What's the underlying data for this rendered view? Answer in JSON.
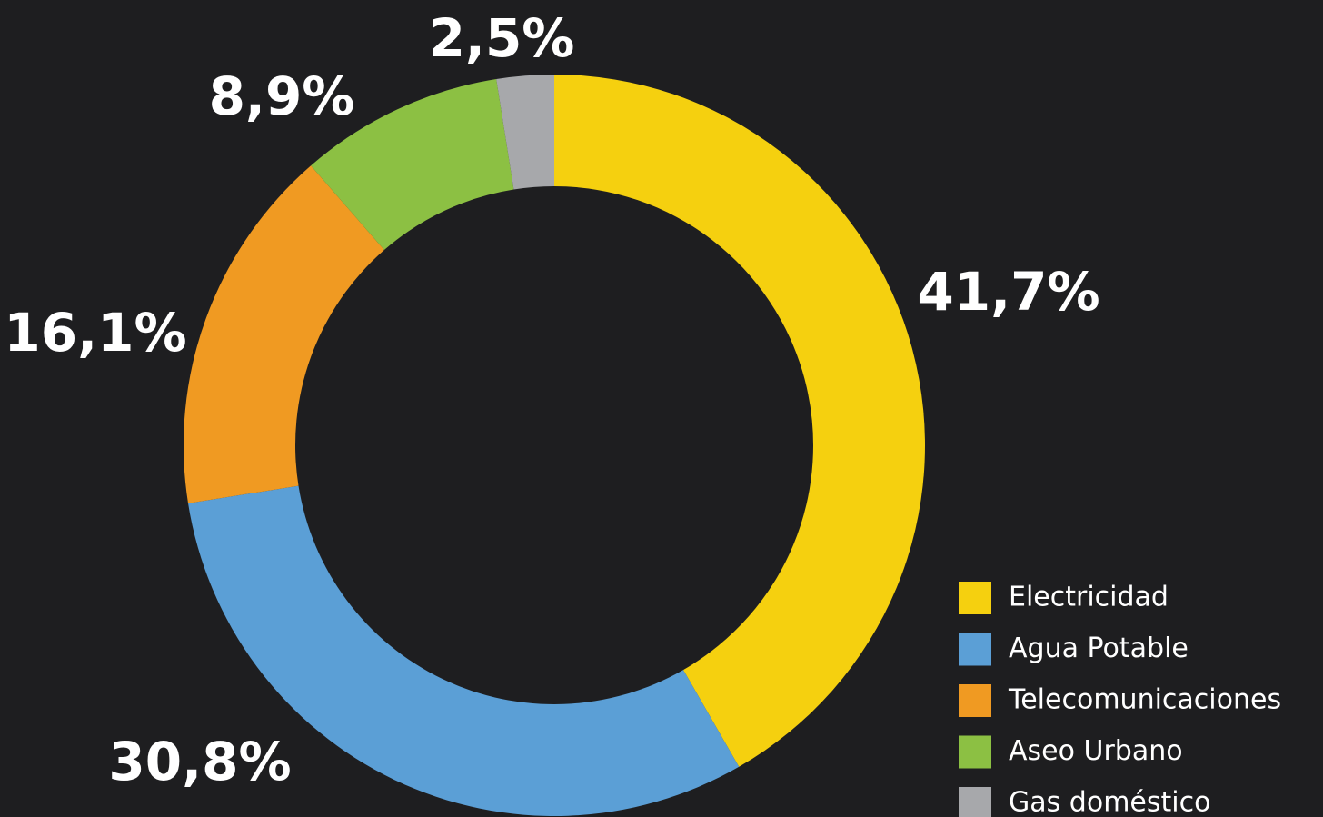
{
  "chart_data": {
    "type": "pie",
    "categories": [
      "Electricidad",
      "Agua Potable",
      "Telecomunicaciones",
      "Aseo Urbano",
      "Gas doméstico"
    ],
    "values": [
      41.7,
      30.8,
      16.1,
      8.9,
      2.5
    ],
    "value_labels": [
      "41,7%",
      "30,8%",
      "16,1%",
      "8,9%",
      "2,5%"
    ],
    "colors": [
      "#f5d00f",
      "#5b9fd6",
      "#f09a22",
      "#8cc043",
      "#a7a8ab"
    ],
    "legend": "bottom-right"
  }
}
